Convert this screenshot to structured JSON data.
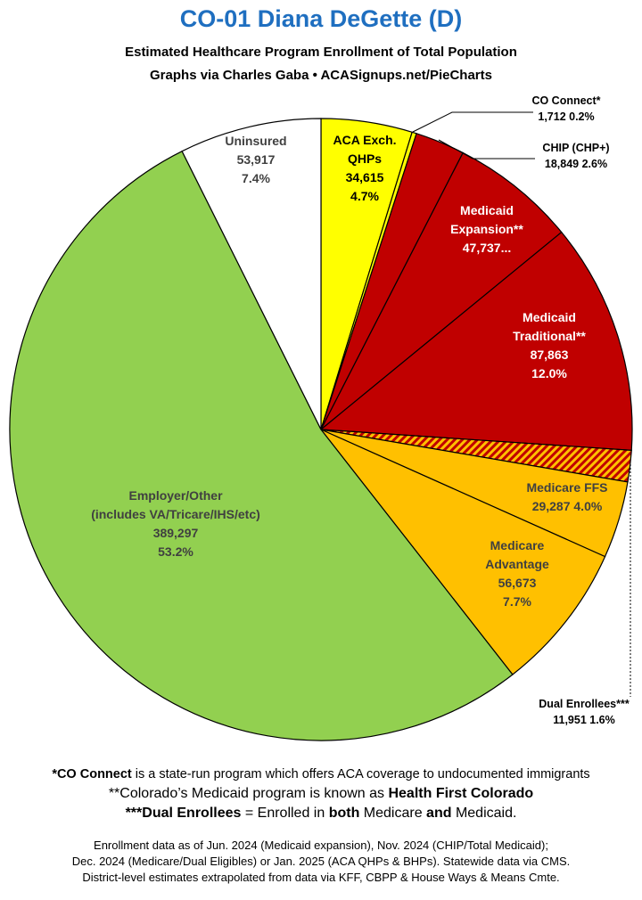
{
  "title": "CO-01 Diana DeGette (D)",
  "subtitle1": "Estimated Healthcare Program Enrollment of Total Population",
  "subtitle2": "Graphs via Charles Gaba  •  ACASignups.net/PieCharts",
  "chart_data": {
    "type": "pie",
    "start_angle_deg": 0,
    "direction": "clockwise",
    "slices": [
      {
        "key": "aca",
        "label": "ACA Exch. QHPs",
        "value": 34615,
        "percent": "4.7%",
        "value_text": "34,615",
        "color": "#ffff00",
        "label_lines": [
          "ACA Exch.",
          "QHPs",
          "34,615",
          "4.7%"
        ],
        "label_color": "#000000",
        "label_pos": "inside"
      },
      {
        "key": "coconnect",
        "label": "CO Connect*",
        "value": 1712,
        "percent": "0.2%",
        "value_text": "1,712",
        "color": "#ffff00",
        "label_lines": [
          "CO Connect*",
          "1,712 0.2%"
        ],
        "label_color": "#000000",
        "label_pos": "outside"
      },
      {
        "key": "chip",
        "label": "CHIP (CHP+)",
        "value": 18849,
        "percent": "2.6%",
        "value_text": "18,849",
        "color": "#c00000",
        "label_lines": [
          "CHIP (CHP+)",
          "18,849 2.6%"
        ],
        "label_color": "#000000",
        "label_pos": "outside"
      },
      {
        "key": "mexp",
        "label": "Medicaid Expansion**",
        "value": 47737,
        "percent": "",
        "value_text": "47,737...",
        "color": "#c00000",
        "label_lines": [
          "Medicaid",
          "Expansion**",
          "47,737..."
        ],
        "label_color": "#ffffff",
        "label_pos": "inside"
      },
      {
        "key": "mtrad",
        "label": "Medicaid Traditional**",
        "value": 87863,
        "percent": "12.0%",
        "value_text": "87,863",
        "color": "#c00000",
        "label_lines": [
          "Medicaid",
          "Traditional**",
          "87,863",
          "12.0%"
        ],
        "label_color": "#ffffff",
        "label_pos": "inside"
      },
      {
        "key": "dual",
        "label": "Dual Enrollees***",
        "value": 11951,
        "percent": "1.6%",
        "value_text": "11,951",
        "color": "#c00000",
        "pattern": "hatched",
        "label_lines": [
          "Dual Enrollees***",
          "11,951 1.6%"
        ],
        "label_color": "#000000",
        "label_pos": "outside"
      },
      {
        "key": "mffs",
        "label": "Medicare FFS",
        "value": 29287,
        "percent": "4.0%",
        "value_text": "29,287",
        "color": "#ffc000",
        "label_lines": [
          "Medicare FFS",
          "29,287 4.0%"
        ],
        "label_color": "#404040",
        "label_pos": "inside"
      },
      {
        "key": "madv",
        "label": "Medicare Advantage",
        "value": 56673,
        "percent": "7.7%",
        "value_text": "56,673",
        "color": "#ffc000",
        "label_lines": [
          "Medicare",
          "Advantage",
          "56,673",
          "7.7%"
        ],
        "label_color": "#404040",
        "label_pos": "inside"
      },
      {
        "key": "employer",
        "label": "Employer/Other (includes VA/Tricare/IHS/etc)",
        "value": 389297,
        "percent": "53.2%",
        "value_text": "389,297",
        "color": "#92d050",
        "label_lines": [
          "Employer/Other",
          "(includes VA/Tricare/IHS/etc)",
          "389,297",
          "53.2%"
        ],
        "label_color": "#404040",
        "label_pos": "inside"
      },
      {
        "key": "uninsured",
        "label": "Uninsured",
        "value": 53917,
        "percent": "7.4%",
        "value_text": "53,917",
        "color": "#ffffff",
        "label_lines": [
          "Uninsured",
          "53,917",
          "7.4%"
        ],
        "label_color": "#404040",
        "label_pos": "inside"
      }
    ]
  },
  "notes": {
    "line1_bold": "*CO Connect",
    "line1_rest": " is a state-run program which offers ACA coverage to undocumented immigrants",
    "line2_a": "**Colorado’s Medicaid program is known as ",
    "line2_b": "Health First Colorado",
    "line3_a": "***Dual Enrollees",
    "line3_b": " = Enrolled in ",
    "line3_c": "both",
    "line3_d": " Medicare ",
    "line3_e": "and",
    "line3_f": " Medicaid.",
    "source1": "Enrollment data as of Jun. 2024 (Medicaid expansion), Nov. 2024 (CHIP/Total Medicaid);",
    "source2": "Dec. 2024 (Medicare/Dual Eligibles) or Jan. 2025 (ACA QHPs & BHPs). Statewide data via CMS.",
    "source3": "District-level estimates extrapolated from data via KFF, CBPP & House Ways & Means Cmte."
  }
}
